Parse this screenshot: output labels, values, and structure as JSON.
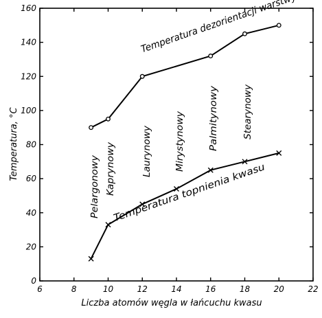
{
  "chart_data": {
    "type": "line",
    "xlabel": "Liczba atomów węgla w łańcuchu kwasu",
    "ylabel": "Temperatura, °C",
    "xlim": [
      6,
      22
    ],
    "ylim": [
      0,
      160
    ],
    "x_ticks": [
      6,
      8,
      10,
      12,
      14,
      16,
      18,
      20,
      22
    ],
    "y_ticks": [
      0,
      20,
      40,
      60,
      80,
      100,
      120,
      140,
      160
    ],
    "grid": false,
    "series": [
      {
        "name": "Temperatura dezorientacji warstwy kwasu",
        "marker": "circle",
        "x": [
          9,
          10,
          12,
          16,
          18,
          20
        ],
        "y": [
          90,
          95,
          120,
          132,
          145,
          150
        ]
      },
      {
        "name": "Temperatura topnienia kwasu",
        "marker": "cross",
        "x": [
          9,
          10,
          12,
          14,
          16,
          18,
          20
        ],
        "y": [
          13,
          33,
          45,
          54,
          65,
          70,
          75
        ]
      }
    ],
    "annotations": [
      {
        "text": "Pelargonowy",
        "x": 9
      },
      {
        "text": "Kaprynowy",
        "x": 10
      },
      {
        "text": "Laurynowy",
        "x": 12
      },
      {
        "text": "Mirystynowy",
        "x": 14
      },
      {
        "text": "Palmitynowy",
        "x": 16
      },
      {
        "text": "Stearynowy",
        "x": 18
      }
    ]
  }
}
